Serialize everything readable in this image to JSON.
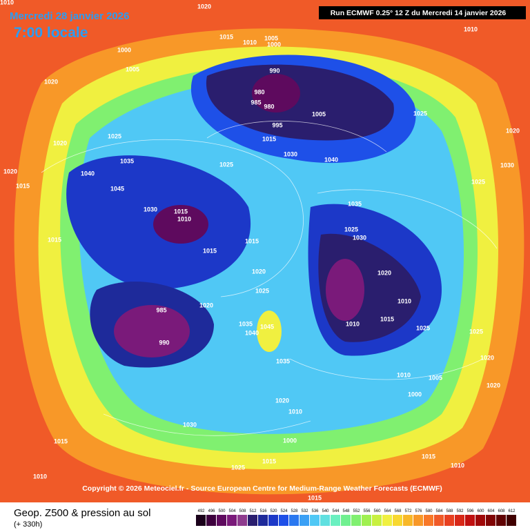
{
  "header": {
    "date": "Mercredi 28 janvier 2026",
    "time": "7:00 locale",
    "run": "Run ECMWF 0.25° 12 Z du Mercredi 14 janvier 2026"
  },
  "copyright": "Copyright © 2026 Meteociel.fr - Source European Centre for Medium-Range Weather Forecasts (ECMWF)",
  "legend": {
    "title": "Geop. Z500 & pression au sol",
    "lead": "(+ 330h)",
    "ticks": [
      492,
      496,
      500,
      504,
      508,
      512,
      516,
      520,
      524,
      528,
      532,
      536,
      540,
      544,
      548,
      552,
      556,
      560,
      564,
      568,
      572,
      576,
      580,
      584,
      588,
      592,
      596,
      600,
      604,
      608,
      612
    ],
    "colors": [
      "#1a001a",
      "#3d003d",
      "#5e0a5e",
      "#7a1a7a",
      "#8e3c8e",
      "#2a1e6e",
      "#1e2a9a",
      "#1c38c8",
      "#1e50e8",
      "#2a78f0",
      "#3aa0f5",
      "#50c8f5",
      "#60e0e0",
      "#6af0c0",
      "#70f090",
      "#80f070",
      "#a0f050",
      "#c8f040",
      "#f0f040",
      "#f8d830",
      "#f8b828",
      "#f89828",
      "#f87828",
      "#f05a28",
      "#e84020",
      "#d82818",
      "#c01010",
      "#a00808",
      "#800404",
      "#600202",
      "#400000"
    ]
  },
  "labels": [
    "1010",
    "1020",
    "1015",
    "1010",
    "1005",
    "1000",
    "1010",
    "1000",
    "1005",
    "990",
    "980",
    "985",
    "980",
    "1005",
    "995",
    "1025",
    "1020",
    "1020",
    "1015",
    "1020",
    "1025",
    "1030",
    "1035",
    "1040",
    "1045",
    "1025",
    "1040",
    "1030",
    "1025",
    "1030",
    "1015",
    "1010",
    "1035",
    "1015",
    "1015",
    "1015",
    "1025",
    "1030",
    "1020",
    "1020",
    "1025",
    "1010",
    "1020",
    "985",
    "990",
    "1010",
    "1015",
    "1035",
    "1045",
    "1040",
    "1025",
    "1025",
    "1035",
    "1020",
    "1010",
    "1005",
    "1000",
    "1020",
    "1020",
    "1010",
    "1030",
    "1000",
    "1015",
    "1015",
    "1015",
    "1025",
    "1010",
    "1010",
    "1015",
    "1020",
    "1015"
  ]
}
